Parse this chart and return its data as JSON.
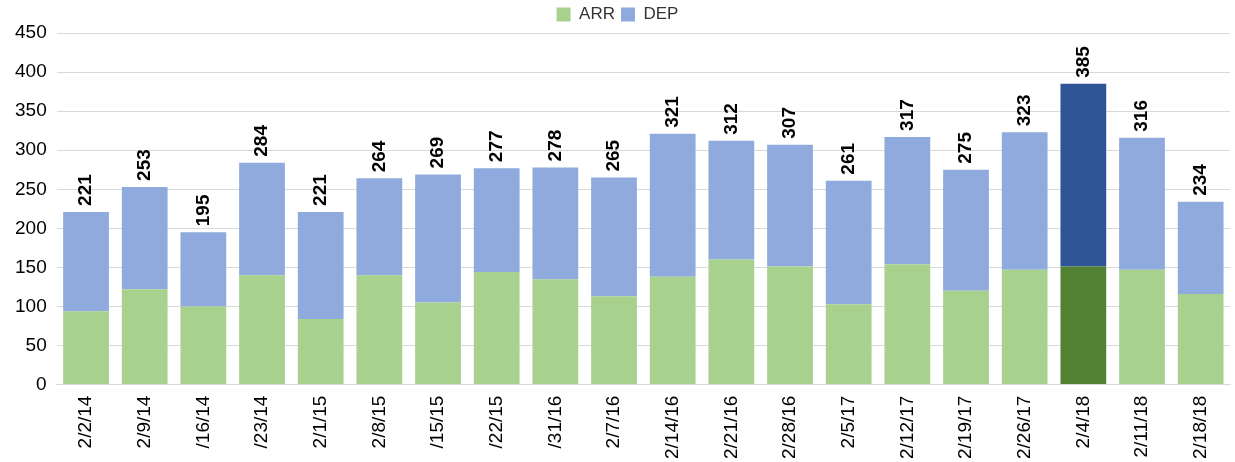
{
  "chart_data": {
    "type": "bar",
    "stacked": true,
    "categories": [
      "2/2/14",
      "2/9/14",
      "/16/14",
      "/23/14",
      "2/1/15",
      "2/8/15",
      "/15/15",
      "/22/15",
      "/31/16",
      "2/7/16",
      "2/14/16",
      "2/21/16",
      "2/28/16",
      "2/5/17",
      "2/12/17",
      "2/19/17",
      "2/26/17",
      "2/4/18",
      "2/11/18",
      "2/18/18"
    ],
    "series": [
      {
        "name": "ARR",
        "color": "#a9d18e",
        "colors": [
          "#a9d18e",
          "#a9d18e",
          "#a9d18e",
          "#a9d18e",
          "#a9d18e",
          "#a9d18e",
          "#a9d18e",
          "#a9d18e",
          "#a9d18e",
          "#a9d18e",
          "#a9d18e",
          "#a9d18e",
          "#a9d18e",
          "#a9d18e",
          "#a9d18e",
          "#a9d18e",
          "#a9d18e",
          "#548235",
          "#a9d18e",
          "#a9d18e"
        ],
        "values": [
          94,
          122,
          100,
          140,
          84,
          140,
          105,
          144,
          135,
          113,
          138,
          160,
          151,
          103,
          154,
          120,
          147,
          151,
          147,
          116
        ]
      },
      {
        "name": "DEP",
        "color": "#8faadc",
        "colors": [
          "#8faadc",
          "#8faadc",
          "#8faadc",
          "#8faadc",
          "#8faadc",
          "#8faadc",
          "#8faadc",
          "#8faadc",
          "#8faadc",
          "#8faadc",
          "#8faadc",
          "#8faadc",
          "#8faadc",
          "#8faadc",
          "#8faadc",
          "#8faadc",
          "#8faadc",
          "#2f5597",
          "#8faadc",
          "#8faadc"
        ],
        "values": [
          127,
          131,
          95,
          144,
          137,
          124,
          164,
          133,
          143,
          152,
          183,
          152,
          156,
          158,
          163,
          155,
          176,
          234,
          169,
          118
        ]
      }
    ],
    "totals": [
      "221",
      "253",
      "195",
      "284",
      "221",
      "264",
      "269",
      "277",
      "278",
      "265",
      "321",
      "312",
      "307",
      "261",
      "317",
      "275",
      "323",
      "385",
      "316",
      "234"
    ],
    "ylim": [
      0,
      450
    ],
    "yticks": [
      0,
      50,
      100,
      150,
      200,
      250,
      300,
      350,
      400,
      450
    ],
    "grid": "y",
    "legend": "top"
  }
}
